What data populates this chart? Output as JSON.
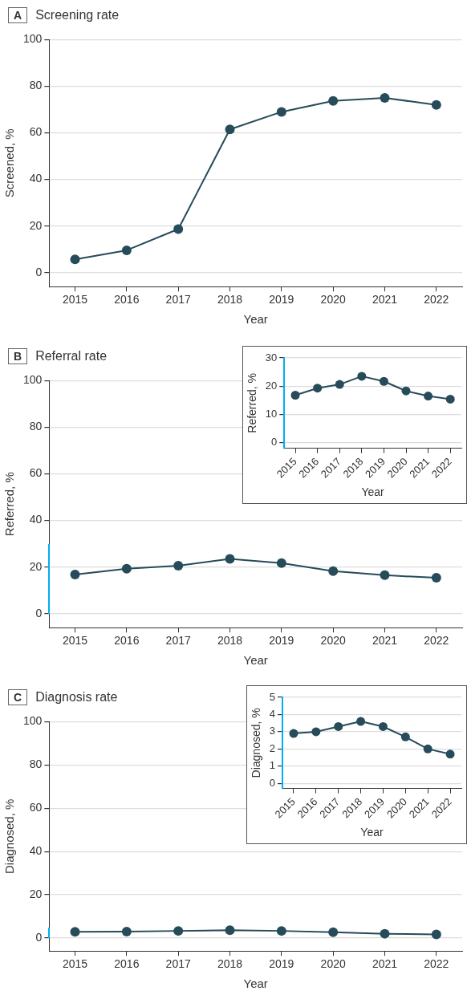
{
  "chart_data": [
    {
      "type": "line",
      "title": "Screening rate",
      "annotations": [
        "A"
      ],
      "xlabel": "Year",
      "ylabel": "Screened, %",
      "categories": [
        "2015",
        "2016",
        "2017",
        "2018",
        "2019",
        "2020",
        "2021",
        "2022"
      ],
      "series": [
        {
          "color": "#264b59",
          "values": [
            5.7,
            9.6,
            18.7,
            61.5,
            69,
            73.7,
            75,
            72
          ]
        }
      ],
      "ylim": [
        -6,
        100
      ],
      "yticks": [
        0,
        20,
        40,
        60,
        80,
        100
      ],
      "grid": "y",
      "marker": "circle",
      "legend": false
    },
    {
      "type": "line",
      "title": "Referral rate",
      "annotations": [
        "B"
      ],
      "xlabel": "Year",
      "ylabel": "Referred, %",
      "categories": [
        "2015",
        "2016",
        "2017",
        "2018",
        "2019",
        "2020",
        "2021",
        "2022"
      ],
      "series": [
        {
          "color": "#264b59",
          "values": [
            16.8,
            19.3,
            20.6,
            23.5,
            21.7,
            18.3,
            16.5,
            15.4
          ]
        }
      ],
      "ylim": [
        -6,
        100
      ],
      "yticks": [
        0,
        20,
        40,
        60,
        80,
        100
      ],
      "grid": "y",
      "marker": "circle",
      "legend": false
    },
    {
      "type": "line",
      "xlabel": "Year",
      "ylabel": "Referred, %",
      "categories": [
        "2015",
        "2016",
        "2017",
        "2018",
        "2019",
        "2020",
        "2021",
        "2022"
      ],
      "series": [
        {
          "color": "#264b59",
          "values": [
            16.8,
            19.3,
            20.6,
            23.5,
            21.7,
            18.3,
            16.5,
            15.4
          ]
        }
      ],
      "ylim": [
        -2,
        30
      ],
      "yticks": [
        0,
        10,
        20,
        30
      ],
      "grid": "y",
      "marker": "circle",
      "legend": false
    },
    {
      "type": "line",
      "title": "Diagnosis rate",
      "annotations": [
        "C"
      ],
      "xlabel": "Year",
      "ylabel": "Diagnosed, %",
      "categories": [
        "2015",
        "2016",
        "2017",
        "2018",
        "2019",
        "2020",
        "2021",
        "2022"
      ],
      "series": [
        {
          "color": "#264b59",
          "values": [
            2.9,
            3.0,
            3.3,
            3.6,
            3.3,
            2.7,
            2.0,
            1.7
          ]
        }
      ],
      "ylim": [
        -6,
        100
      ],
      "yticks": [
        0,
        20,
        40,
        60,
        80,
        100
      ],
      "grid": "y",
      "marker": "circle",
      "legend": false
    },
    {
      "type": "line",
      "xlabel": "Year",
      "ylabel": "Diagnosed, %",
      "categories": [
        "2015",
        "2016",
        "2017",
        "2018",
        "2019",
        "2020",
        "2021",
        "2022"
      ],
      "series": [
        {
          "color": "#264b59",
          "values": [
            2.9,
            3.0,
            3.3,
            3.6,
            3.3,
            2.7,
            2.0,
            1.7
          ]
        }
      ],
      "ylim": [
        -0.3,
        5
      ],
      "yticks": [
        0,
        1,
        2,
        3,
        4,
        5
      ],
      "grid": "y",
      "marker": "circle",
      "legend": false
    }
  ]
}
